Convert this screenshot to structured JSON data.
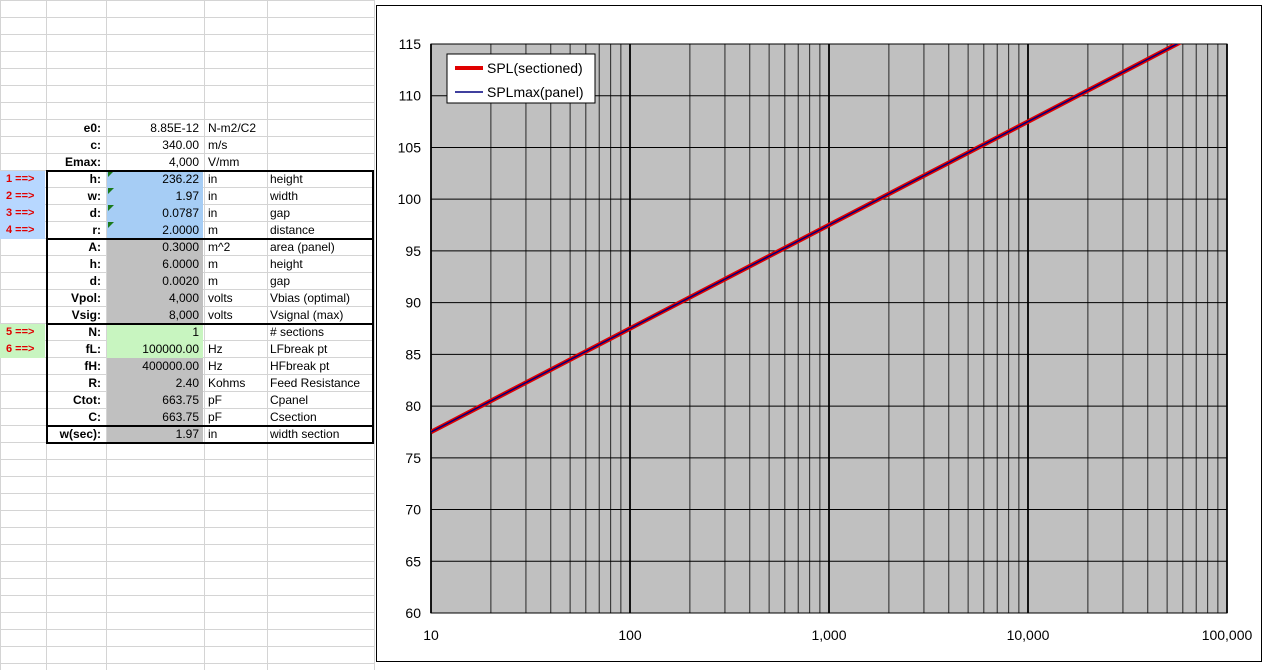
{
  "params": [
    {
      "arrow": "",
      "label": "e0:",
      "value": "8.85E-12",
      "unit": "N-m2/C2",
      "desc": "",
      "fill": "none"
    },
    {
      "arrow": "",
      "label": "c:",
      "value": "340.00",
      "unit": "m/s",
      "desc": "",
      "fill": "none"
    },
    {
      "arrow": "",
      "label": "Emax:",
      "value": "4,000",
      "unit": "V/mm",
      "desc": "",
      "fill": "none"
    },
    {
      "arrow": "1 ==>",
      "label": "h:",
      "value": "236.22",
      "unit": "in",
      "desc": "height",
      "fill": "blue"
    },
    {
      "arrow": "2 ==>",
      "label": "w:",
      "value": "1.97",
      "unit": "in",
      "desc": "width",
      "fill": "blue"
    },
    {
      "arrow": "3 ==>",
      "label": "d:",
      "value": "0.0787",
      "unit": "in",
      "desc": "gap",
      "fill": "blue"
    },
    {
      "arrow": "4 ==>",
      "label": "r:",
      "value": "2.0000",
      "unit": "m",
      "desc": "distance",
      "fill": "blue"
    },
    {
      "arrow": "",
      "label": "A:",
      "value": "0.3000",
      "unit": "m^2",
      "desc": "area (panel)",
      "fill": "grey"
    },
    {
      "arrow": "",
      "label": "h:",
      "value": "6.0000",
      "unit": "m",
      "desc": "height",
      "fill": "grey"
    },
    {
      "arrow": "",
      "label": "d:",
      "value": "0.0020",
      "unit": "m",
      "desc": "gap",
      "fill": "grey"
    },
    {
      "arrow": "",
      "label": "Vpol:",
      "value": "4,000",
      "unit": "volts",
      "desc": "Vbias (optimal)",
      "fill": "grey"
    },
    {
      "arrow": "",
      "label": "Vsig:",
      "value": "8,000",
      "unit": "volts",
      "desc": "Vsignal (max)",
      "fill": "grey"
    },
    {
      "arrow": "5 ==>",
      "label": "N:",
      "value": "1",
      "unit": "",
      "desc": "# sections",
      "fill": "green"
    },
    {
      "arrow": "6 ==>",
      "label": "fL:",
      "value": "100000.00",
      "unit": "Hz",
      "desc": "LFbreak pt",
      "fill": "green"
    },
    {
      "arrow": "",
      "label": "fH:",
      "value": "400000.00",
      "unit": "Hz",
      "desc": "HFbreak pt",
      "fill": "grey"
    },
    {
      "arrow": "",
      "label": "R:",
      "value": "2.40",
      "unit": "Kohms",
      "desc": "Feed Resistance",
      "fill": "grey"
    },
    {
      "arrow": "",
      "label": "Ctot:",
      "value": "663.75",
      "unit": "pF",
      "desc": "Cpanel",
      "fill": "grey"
    },
    {
      "arrow": "",
      "label": "C:",
      "value": "663.75",
      "unit": "pF",
      "desc": "Csection",
      "fill": "grey"
    },
    {
      "arrow": "",
      "label": "w(sec):",
      "value": "1.97",
      "unit": "in",
      "desc": "width section",
      "fill": "grey"
    }
  ],
  "chart_data": {
    "type": "line",
    "title": "",
    "xlabel": "",
    "ylabel": "",
    "x_scale": "log",
    "xlim": [
      10,
      100000
    ],
    "ylim": [
      60,
      115
    ],
    "x_ticks": [
      10,
      100,
      1000,
      10000,
      100000
    ],
    "x_tick_labels": [
      "10",
      "100",
      "1,000",
      "10,000",
      "100,000"
    ],
    "y_ticks": [
      60,
      65,
      70,
      75,
      80,
      85,
      90,
      95,
      100,
      105,
      110,
      115
    ],
    "y_tick_labels": [
      "60",
      "65",
      "70",
      "75",
      "80",
      "85",
      "90",
      "95",
      "100",
      "105",
      "110",
      "115"
    ],
    "grid": true,
    "plot_background": "#c0c0c0",
    "legend_position": "top-left",
    "series": [
      {
        "name": "SPL(sectioned)",
        "color": "#e00000",
        "x": [
          10,
          100,
          1000,
          10000,
          60000
        ],
        "y": [
          77.5,
          87.5,
          97.5,
          107.5,
          115.3
        ]
      },
      {
        "name": "SPLmax(panel)",
        "color": "#00007f",
        "x": [
          10,
          100,
          1000,
          10000,
          60000
        ],
        "y": [
          77.5,
          87.5,
          97.5,
          107.5,
          115.3
        ]
      }
    ]
  }
}
